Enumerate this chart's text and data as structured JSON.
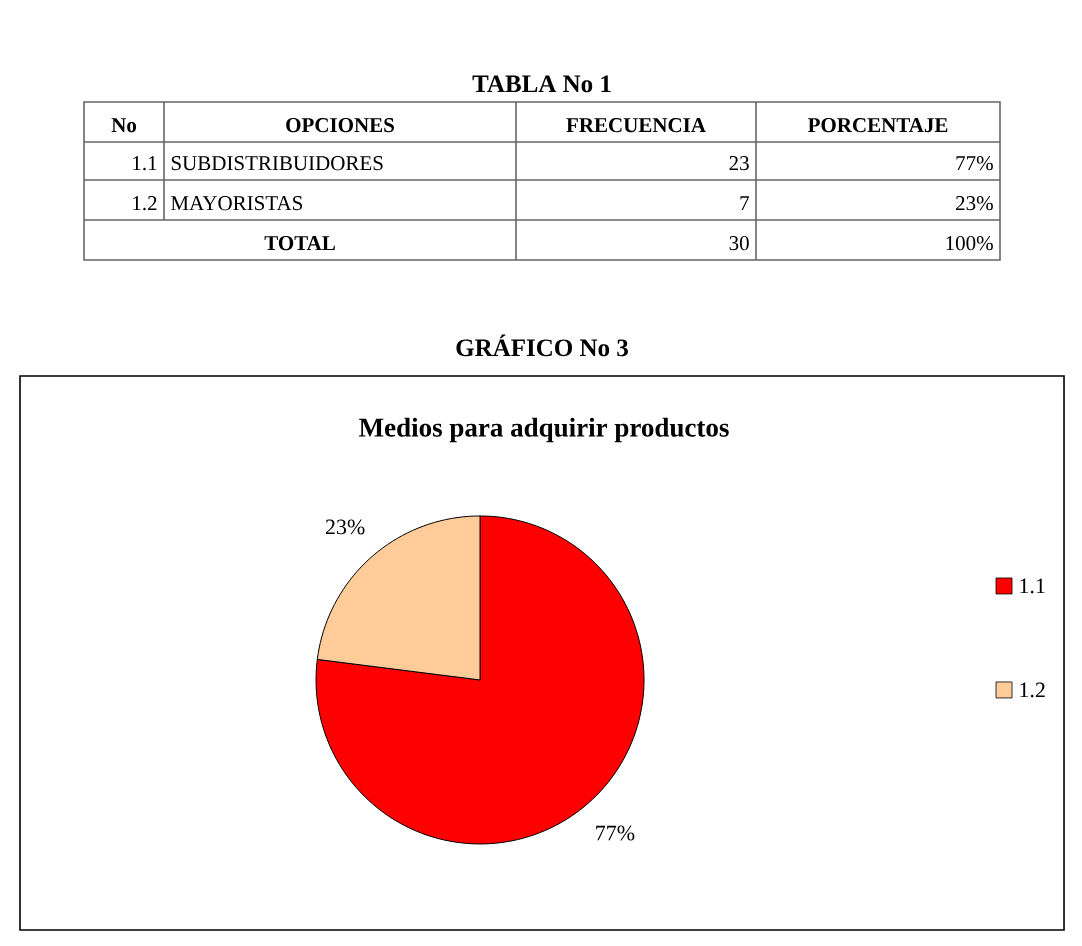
{
  "chart_data": {
    "type": "pie",
    "title": "Medios para adquirir productos",
    "categories": [
      "1.1",
      "1.2"
    ],
    "values": [
      77,
      23
    ],
    "colors": [
      "#ff0000",
      "#ffcc99"
    ],
    "value_labels": [
      "77%",
      "23%"
    ],
    "legend": "right",
    "annotations": [
      "TABLA No 1",
      "No",
      "OPCIONES",
      "FRECUENCIA",
      "PORCENTAJE",
      "1.1",
      "SUBDISTRIBUIDORES",
      "23",
      "77%",
      "1.2",
      "MAYORISTAS",
      "7",
      "23%",
      "TOTAL",
      "30",
      "100%",
      "GRÁFICO No 3"
    ]
  }
}
